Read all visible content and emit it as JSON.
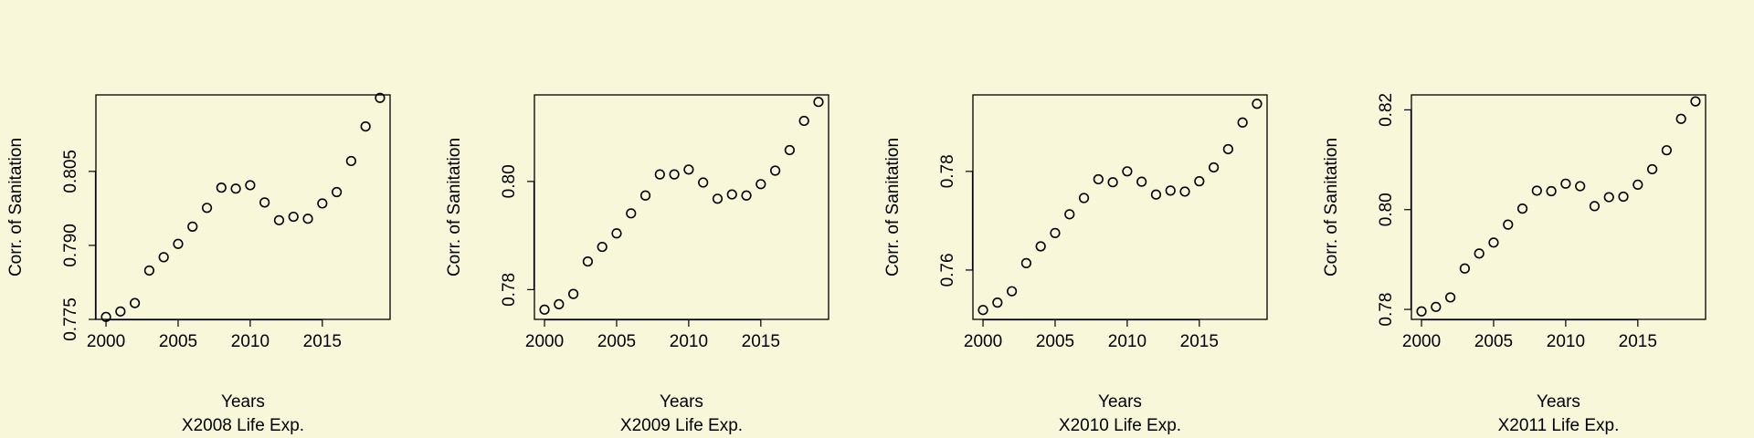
{
  "background_color": "#f9f7d9",
  "chart_data": [
    {
      "type": "scatter",
      "title": "",
      "xlabel": "Years",
      "caption": "X2008 Life Exp.",
      "ylabel": "Corr. of Sanitation",
      "x": [
        2000,
        2001,
        2002,
        2003,
        2004,
        2005,
        2006,
        2007,
        2008,
        2009,
        2010,
        2011,
        2012,
        2013,
        2014,
        2015,
        2016,
        2017,
        2018,
        2019
      ],
      "y": [
        0.7755,
        0.7766,
        0.7783,
        0.7849,
        0.7876,
        0.7903,
        0.7938,
        0.7976,
        0.8017,
        0.8015,
        0.8022,
        0.7987,
        0.7951,
        0.7958,
        0.7954,
        0.7985,
        0.8008,
        0.8071,
        0.8141,
        0.8199
      ],
      "xlim": [
        1999.3,
        2019.7
      ],
      "ylim": [
        0.775,
        0.8205
      ],
      "xticks": [
        2000,
        2005,
        2010,
        2015
      ],
      "xtick_labels": [
        "2000",
        "2005",
        "2010",
        "2015"
      ],
      "yticks": [
        0.775,
        0.79,
        0.805
      ],
      "ytick_labels": [
        "0.775",
        "0.790",
        "0.805"
      ],
      "grid": false,
      "legend": "none"
    },
    {
      "type": "scatter",
      "title": "",
      "xlabel": "Years",
      "caption": "X2009 Life Exp.",
      "ylabel": "Corr. of Sanitation",
      "x": [
        2000,
        2001,
        2002,
        2003,
        2004,
        2005,
        2006,
        2007,
        2008,
        2009,
        2010,
        2011,
        2012,
        2013,
        2014,
        2015,
        2016,
        2017,
        2018,
        2019
      ],
      "y": [
        0.7763,
        0.7773,
        0.7792,
        0.7852,
        0.7879,
        0.7904,
        0.7941,
        0.7974,
        0.8013,
        0.8013,
        0.8022,
        0.7998,
        0.7968,
        0.7976,
        0.7974,
        0.7995,
        0.802,
        0.8058,
        0.8112,
        0.8147
      ],
      "xlim": [
        1999.3,
        2019.7
      ],
      "ylim": [
        0.7745,
        0.816
      ],
      "xticks": [
        2000,
        2005,
        2010,
        2015
      ],
      "xtick_labels": [
        "2000",
        "2005",
        "2010",
        "2015"
      ],
      "yticks": [
        0.78,
        0.8
      ],
      "ytick_labels": [
        "0.78",
        "0.80"
      ],
      "grid": false,
      "legend": "none"
    },
    {
      "type": "scatter",
      "title": "",
      "xlabel": "Years",
      "caption": "X2010 Life Exp.",
      "ylabel": "Corr. of Sanitation",
      "x": [
        2000,
        2001,
        2002,
        2003,
        2004,
        2005,
        2006,
        2007,
        2008,
        2009,
        2010,
        2011,
        2012,
        2013,
        2014,
        2015,
        2016,
        2017,
        2018,
        2019
      ],
      "y": [
        0.7519,
        0.7534,
        0.7557,
        0.7614,
        0.7648,
        0.7675,
        0.7713,
        0.7746,
        0.7784,
        0.7778,
        0.78,
        0.7779,
        0.7753,
        0.7761,
        0.7759,
        0.778,
        0.7808,
        0.7845,
        0.7899,
        0.7937
      ],
      "xlim": [
        1999.3,
        2019.7
      ],
      "ylim": [
        0.75,
        0.7955
      ],
      "xticks": [
        2000,
        2005,
        2010,
        2015
      ],
      "xtick_labels": [
        "2000",
        "2005",
        "2010",
        "2015"
      ],
      "yticks": [
        0.76,
        0.78
      ],
      "ytick_labels": [
        "0.76",
        "0.78"
      ],
      "grid": false,
      "legend": "none"
    },
    {
      "type": "scatter",
      "title": "",
      "xlabel": "Years",
      "caption": "X2011 Life Exp.",
      "ylabel": "Corr. of Sanitation",
      "x": [
        2000,
        2001,
        2002,
        2003,
        2004,
        2005,
        2006,
        2007,
        2008,
        2009,
        2010,
        2011,
        2012,
        2013,
        2014,
        2015,
        2016,
        2017,
        2018,
        2019
      ],
      "y": [
        0.7796,
        0.7805,
        0.7824,
        0.7882,
        0.7912,
        0.7934,
        0.797,
        0.8002,
        0.8038,
        0.8037,
        0.8052,
        0.8047,
        0.8007,
        0.8025,
        0.8026,
        0.805,
        0.8081,
        0.8119,
        0.8182,
        0.8217
      ],
      "xlim": [
        1999.3,
        2019.7
      ],
      "ylim": [
        0.778,
        0.823
      ],
      "xticks": [
        2000,
        2005,
        2010,
        2015
      ],
      "xtick_labels": [
        "2000",
        "2005",
        "2010",
        "2015"
      ],
      "yticks": [
        0.78,
        0.8,
        0.82
      ],
      "ytick_labels": [
        "0.78",
        "0.80",
        "0.82"
      ],
      "grid": false,
      "legend": "none"
    }
  ]
}
